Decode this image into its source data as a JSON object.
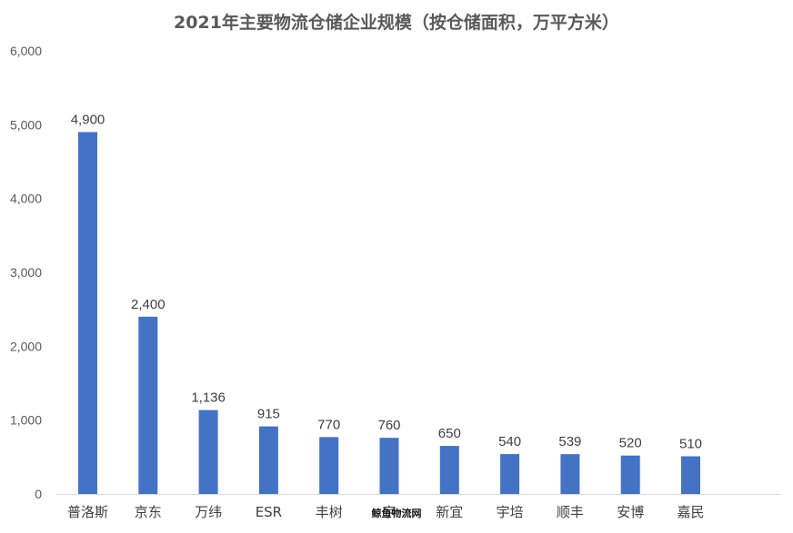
{
  "chart_data": {
    "type": "bar",
    "title": "2021年主要物流仓储企业规模（按仓储面积，万平方米）",
    "categories": [
      "普洛斯",
      "京东",
      "万纬",
      "ESR",
      "丰树",
      "宇",
      "新宜",
      "宇培",
      "顺丰",
      "安博",
      "嘉民"
    ],
    "values": [
      4900,
      2400,
      1136,
      915,
      770,
      760,
      650,
      540,
      539,
      520,
      510
    ],
    "data_labels": [
      "4,900",
      "2,400",
      "1,136",
      "915",
      "770",
      "760",
      "650",
      "540",
      "539",
      "520",
      "510"
    ],
    "ylim": [
      0,
      6000
    ],
    "yticks": [
      "0",
      "1,000",
      "2,000",
      "3,000",
      "4,000",
      "5,000",
      "6,000"
    ],
    "grid": false,
    "legend": "none",
    "bar_color": "#4472C4"
  },
  "watermark": "鲸鱼物流网"
}
